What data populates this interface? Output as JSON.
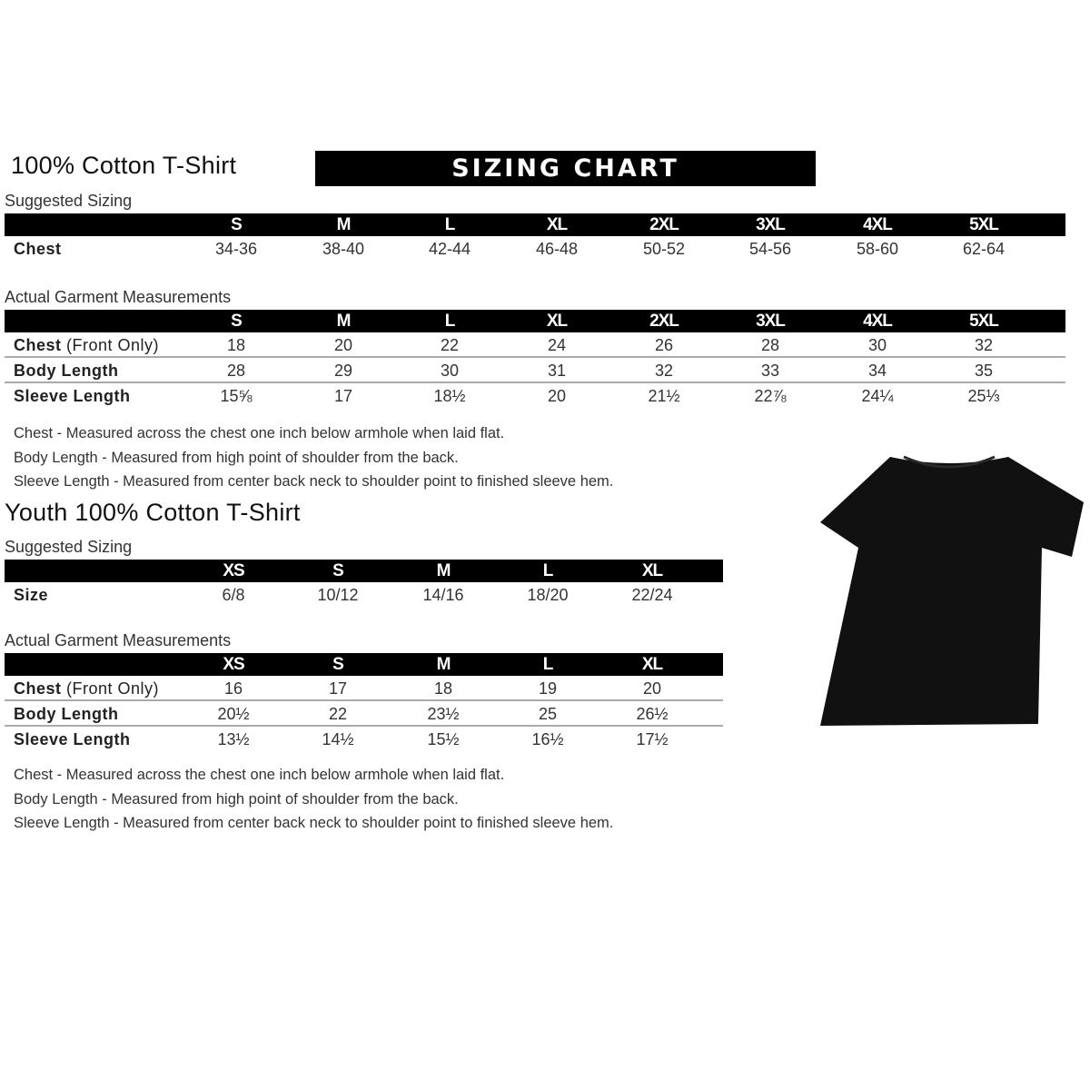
{
  "adult": {
    "title": "100% Cotton T-Shirt",
    "banner": "SIZING CHART",
    "suggested_label": "Suggested Sizing",
    "sizes": [
      "S",
      "M",
      "L",
      "XL",
      "2XL",
      "3XL",
      "4XL",
      "5XL"
    ],
    "suggested_rows": [
      {
        "label": "Chest",
        "values": [
          "34-36",
          "38-40",
          "42-44",
          "46-48",
          "50-52",
          "54-56",
          "58-60",
          "62-64"
        ]
      }
    ],
    "actual_label": "Actual Garment Measurements",
    "actual_rows": [
      {
        "label": "Chest",
        "label_note": " (Front Only)",
        "values": [
          "18",
          "20",
          "22",
          "24",
          "26",
          "28",
          "30",
          "32"
        ]
      },
      {
        "label": "Body Length",
        "label_note": "",
        "values": [
          "28",
          "29",
          "30",
          "31",
          "32",
          "33",
          "34",
          "35"
        ]
      },
      {
        "label": "Sleeve Length",
        "label_note": "",
        "values": [
          "15⅝",
          "17",
          "18½",
          "20",
          "21½",
          "22⅞",
          "24¼",
          "25⅓"
        ]
      }
    ],
    "notes": [
      "Chest - Measured across the chest one inch below armhole when laid flat.",
      "Body Length - Measured from high point of shoulder from the back.",
      "Sleeve Length - Measured from center back neck to shoulder point to finished sleeve hem."
    ]
  },
  "youth": {
    "title": "Youth 100% Cotton T-Shirt",
    "suggested_label": "Suggested Sizing",
    "sizes": [
      "XS",
      "S",
      "M",
      "L",
      "XL"
    ],
    "suggested_rows": [
      {
        "label": "Size",
        "values": [
          "6/8",
          "10/12",
          "14/16",
          "18/20",
          "22/24"
        ]
      }
    ],
    "actual_label": "Actual Garment Measurements",
    "actual_rows": [
      {
        "label": "Chest",
        "label_note": " (Front Only)",
        "values": [
          "16",
          "17",
          "18",
          "19",
          "20"
        ]
      },
      {
        "label": "Body Length",
        "label_note": "",
        "values": [
          "20½",
          "22",
          "23½",
          "25",
          "26½"
        ]
      },
      {
        "label": "Sleeve Length",
        "label_note": "",
        "values": [
          "13½",
          "14½",
          "15½",
          "16½",
          "17½"
        ]
      }
    ],
    "notes": [
      "Chest - Measured across the chest one inch below armhole when laid flat.",
      "Body Length - Measured from high point of shoulder from the back.",
      "Sleeve Length - Measured from center back neck to shoulder point to finished sleeve hem."
    ]
  },
  "image": {
    "icon": "tshirt-icon",
    "color": "#111111"
  }
}
